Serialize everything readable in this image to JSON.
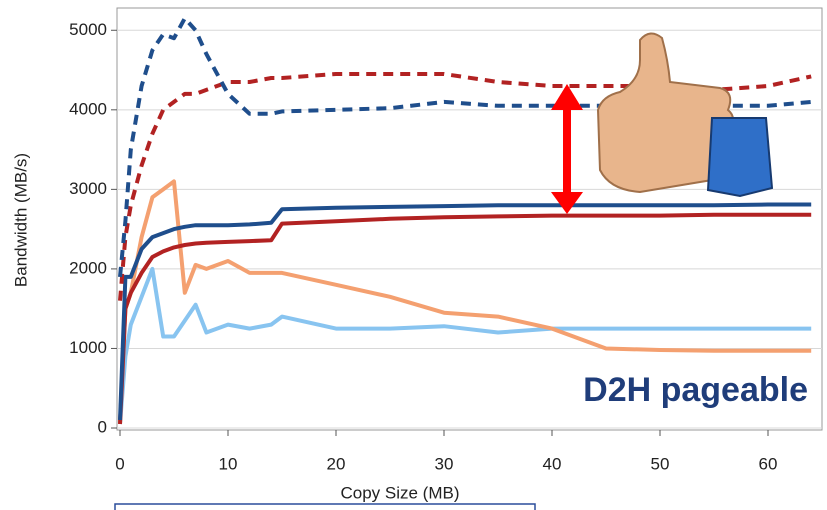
{
  "chart_data": {
    "type": "line",
    "xlabel": "Copy Size (MB)",
    "ylabel": "Bandwidth (MB/s)",
    "annotation": "D2H pageable",
    "x": [
      0,
      0.5,
      1,
      2,
      3,
      4,
      5,
      6,
      7,
      8,
      10,
      12,
      14,
      15,
      20,
      25,
      30,
      35,
      40,
      45,
      50,
      55,
      60,
      64
    ],
    "series": [
      {
        "color": "#1f4e8c",
        "dash": true,
        "values": [
          1900,
          2600,
          3500,
          4300,
          4750,
          4950,
          4900,
          5150,
          5000,
          4700,
          4200,
          3950,
          3950,
          3980,
          4000,
          4020,
          4100,
          4050,
          4050,
          4050,
          4050,
          4050,
          4050,
          4100
        ]
      },
      {
        "color": "#b22222",
        "dash": true,
        "values": [
          1600,
          2400,
          2800,
          3300,
          3700,
          4000,
          4100,
          4200,
          4200,
          4250,
          4350,
          4350,
          4400,
          4400,
          4450,
          4450,
          4450,
          4350,
          4300,
          4300,
          4300,
          4250,
          4300,
          4420
        ]
      },
      {
        "color": "#1f4e8c",
        "dash": false,
        "values": [
          100,
          1900,
          1900,
          2250,
          2400,
          2450,
          2500,
          2530,
          2550,
          2550,
          2550,
          2560,
          2580,
          2750,
          2770,
          2780,
          2790,
          2800,
          2800,
          2800,
          2800,
          2800,
          2810,
          2810
        ]
      },
      {
        "color": "#b22222",
        "dash": false,
        "values": [
          50,
          1500,
          1700,
          1950,
          2150,
          2220,
          2270,
          2300,
          2320,
          2330,
          2340,
          2350,
          2360,
          2570,
          2600,
          2630,
          2650,
          2660,
          2670,
          2670,
          2670,
          2680,
          2680,
          2680
        ]
      },
      {
        "color": "#f4a070",
        "dash": false,
        "values": [
          50,
          1500,
          1700,
          2400,
          2900,
          3000,
          3100,
          1700,
          2050,
          2000,
          2100,
          1950,
          1950,
          1950,
          1800,
          1650,
          1450,
          1400,
          1250,
          1000,
          980,
          970,
          970,
          970
        ]
      },
      {
        "color": "#88c4f0",
        "dash": false,
        "values": [
          50,
          900,
          1300,
          1650,
          2000,
          1150,
          1150,
          1350,
          1550,
          1200,
          1300,
          1250,
          1300,
          1400,
          1250,
          1250,
          1280,
          1200,
          1250,
          1250,
          1250,
          1250,
          1250,
          1250
        ]
      }
    ],
    "xlim": [
      0,
      65
    ],
    "ylim": [
      0,
      5280
    ],
    "xticks": [
      0,
      10,
      20,
      30,
      40,
      50,
      60
    ],
    "yticks": [
      0,
      1000,
      2000,
      3000,
      4000,
      5000
    ],
    "grid": true
  }
}
